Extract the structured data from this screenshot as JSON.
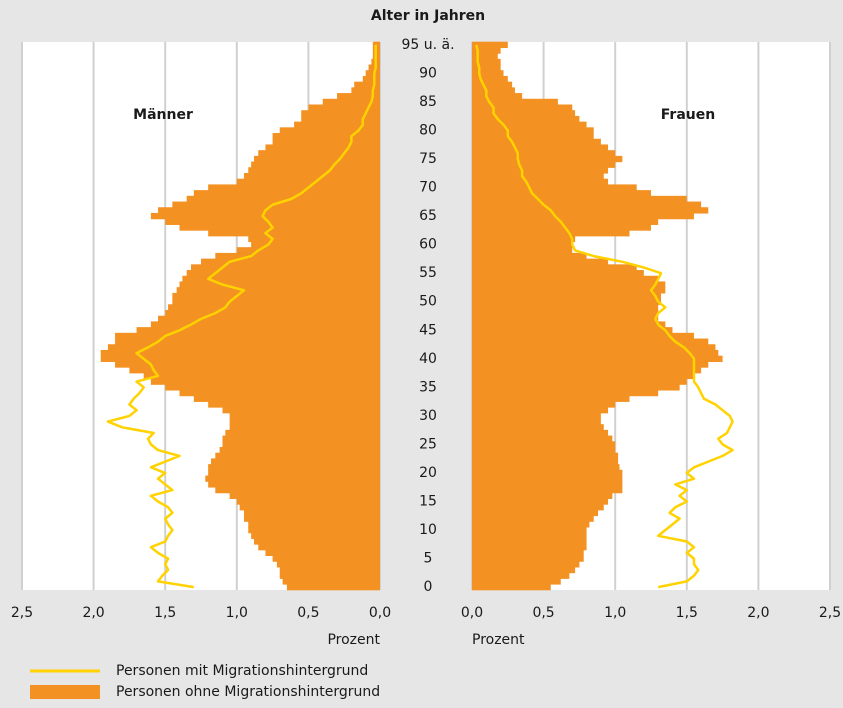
{
  "chart_data": {
    "type": "pyramid",
    "title": "Alter in Jahren",
    "groups": [
      "Männer",
      "Frauen"
    ],
    "x_label": "Prozent",
    "xlim": [
      0,
      2.5
    ],
    "xticks": [
      {
        "value": 0,
        "label": "0,0"
      },
      {
        "value": 0.5,
        "label": "0,5"
      },
      {
        "value": 1,
        "label": "1,0"
      },
      {
        "value": 1.5,
        "label": "1,5"
      },
      {
        "value": 2,
        "label": "2,0"
      },
      {
        "value": 2.5,
        "label": "2,5"
      }
    ],
    "ylim": [
      -0.5,
      95.5
    ],
    "yticks": [
      0,
      5,
      10,
      15,
      20,
      25,
      30,
      35,
      40,
      45,
      50,
      55,
      60,
      65,
      70,
      75,
      80,
      85,
      90,
      {
        "value": 95,
        "label": "95 u. ä."
      }
    ],
    "grid": true,
    "ages": [
      0,
      1,
      2,
      3,
      4,
      5,
      6,
      7,
      8,
      9,
      10,
      11,
      12,
      13,
      14,
      15,
      16,
      17,
      18,
      19,
      20,
      21,
      22,
      23,
      24,
      25,
      26,
      27,
      28,
      29,
      30,
      31,
      32,
      33,
      34,
      35,
      36,
      37,
      38,
      39,
      40,
      41,
      42,
      43,
      44,
      45,
      46,
      47,
      48,
      49,
      50,
      51,
      52,
      53,
      54,
      55,
      56,
      57,
      58,
      59,
      60,
      61,
      62,
      63,
      64,
      65,
      66,
      67,
      68,
      69,
      70,
      71,
      72,
      73,
      74,
      75,
      76,
      77,
      78,
      79,
      80,
      81,
      82,
      83,
      84,
      85,
      86,
      87,
      88,
      89,
      90,
      91,
      92,
      93,
      94,
      95
    ],
    "series": [
      {
        "name": "Personen ohne Migrationshintergrund",
        "color": "#f39122",
        "style": "bar",
        "values": [
          [
            0.65,
            0.68,
            0.7,
            0.7,
            0.72,
            0.75,
            0.8,
            0.85,
            0.88,
            0.9,
            0.92,
            0.92,
            0.95,
            0.95,
            0.98,
            1.0,
            1.05,
            1.15,
            1.2,
            1.22,
            1.2,
            1.2,
            1.18,
            1.15,
            1.12,
            1.1,
            1.1,
            1.08,
            1.05,
            1.05,
            1.05,
            1.1,
            1.2,
            1.3,
            1.4,
            1.5,
            1.6,
            1.65,
            1.75,
            1.85,
            1.95,
            1.95,
            1.9,
            1.85,
            1.85,
            1.7,
            1.6,
            1.55,
            1.5,
            1.48,
            1.45,
            1.45,
            1.42,
            1.4,
            1.38,
            1.35,
            1.32,
            1.25,
            1.15,
            1.0,
            0.9,
            0.92,
            1.2,
            1.4,
            1.5,
            1.6,
            1.55,
            1.45,
            1.35,
            1.3,
            1.2,
            1.0,
            0.95,
            0.92,
            0.9,
            0.88,
            0.85,
            0.8,
            0.75,
            0.75,
            0.7,
            0.6,
            0.55,
            0.55,
            0.5,
            0.4,
            0.3,
            0.2,
            0.18,
            0.12,
            0.1,
            0.08,
            0.06,
            0.05,
            0.05,
            0.05
          ],
          [
            0.55,
            0.62,
            0.68,
            0.72,
            0.75,
            0.78,
            0.78,
            0.8,
            0.8,
            0.8,
            0.8,
            0.82,
            0.85,
            0.88,
            0.92,
            0.95,
            0.98,
            1.05,
            1.05,
            1.05,
            1.05,
            1.03,
            1.02,
            1.02,
            1.0,
            1.0,
            0.98,
            0.95,
            0.92,
            0.9,
            0.9,
            0.95,
            1.0,
            1.1,
            1.3,
            1.45,
            1.5,
            1.55,
            1.6,
            1.65,
            1.75,
            1.72,
            1.7,
            1.65,
            1.55,
            1.4,
            1.35,
            1.3,
            1.3,
            1.3,
            1.32,
            1.32,
            1.35,
            1.35,
            1.3,
            1.2,
            1.15,
            0.95,
            0.8,
            0.7,
            0.7,
            0.72,
            1.1,
            1.25,
            1.3,
            1.55,
            1.65,
            1.6,
            1.5,
            1.25,
            1.15,
            0.95,
            0.92,
            0.95,
            1.0,
            1.05,
            1.0,
            0.95,
            0.9,
            0.85,
            0.85,
            0.8,
            0.75,
            0.72,
            0.7,
            0.6,
            0.35,
            0.3,
            0.28,
            0.25,
            0.22,
            0.2,
            0.2,
            0.18,
            0.2,
            0.25
          ]
        ]
      },
      {
        "name": "Personen mit Migrationshintergrund",
        "color": "#ffd200",
        "style": "line",
        "values": [
          [
            1.3,
            1.55,
            1.52,
            1.48,
            1.5,
            1.48,
            1.55,
            1.6,
            1.5,
            1.48,
            1.45,
            1.48,
            1.5,
            1.45,
            1.48,
            1.55,
            1.6,
            1.45,
            1.5,
            1.55,
            1.5,
            1.6,
            1.5,
            1.4,
            1.55,
            1.6,
            1.62,
            1.58,
            1.8,
            1.9,
            1.75,
            1.7,
            1.75,
            1.72,
            1.68,
            1.65,
            1.7,
            1.55,
            1.58,
            1.6,
            1.65,
            1.7,
            1.62,
            1.55,
            1.5,
            1.4,
            1.32,
            1.25,
            1.15,
            1.08,
            1.05,
            1.0,
            0.95,
            1.1,
            1.2,
            1.15,
            1.1,
            1.05,
            0.9,
            0.85,
            0.78,
            0.75,
            0.8,
            0.75,
            0.78,
            0.82,
            0.8,
            0.75,
            0.62,
            0.55,
            0.5,
            0.45,
            0.4,
            0.35,
            0.32,
            0.28,
            0.25,
            0.22,
            0.2,
            0.2,
            0.15,
            0.12,
            0.12,
            0.1,
            0.08,
            0.06,
            0.05,
            0.05,
            0.04,
            0.04,
            0.04,
            0.03,
            0.03,
            0.03,
            0.03,
            0.03
          ],
          [
            1.3,
            1.5,
            1.55,
            1.58,
            1.55,
            1.55,
            1.5,
            1.55,
            1.5,
            1.3,
            1.35,
            1.4,
            1.45,
            1.38,
            1.42,
            1.5,
            1.45,
            1.5,
            1.42,
            1.55,
            1.5,
            1.55,
            1.65,
            1.75,
            1.82,
            1.75,
            1.72,
            1.78,
            1.8,
            1.82,
            1.8,
            1.75,
            1.7,
            1.62,
            1.6,
            1.58,
            1.55,
            1.55,
            1.55,
            1.55,
            1.55,
            1.52,
            1.48,
            1.42,
            1.38,
            1.35,
            1.3,
            1.28,
            1.3,
            1.35,
            1.3,
            1.28,
            1.25,
            1.28,
            1.3,
            1.32,
            1.2,
            1.05,
            0.85,
            0.72,
            0.7,
            0.7,
            0.68,
            0.65,
            0.62,
            0.58,
            0.55,
            0.5,
            0.46,
            0.42,
            0.4,
            0.38,
            0.35,
            0.35,
            0.33,
            0.32,
            0.32,
            0.3,
            0.28,
            0.25,
            0.25,
            0.22,
            0.18,
            0.15,
            0.15,
            0.12,
            0.1,
            0.1,
            0.08,
            0.06,
            0.05,
            0.05,
            0.04,
            0.04,
            0.04,
            0.03
          ]
        ]
      }
    ]
  }
}
